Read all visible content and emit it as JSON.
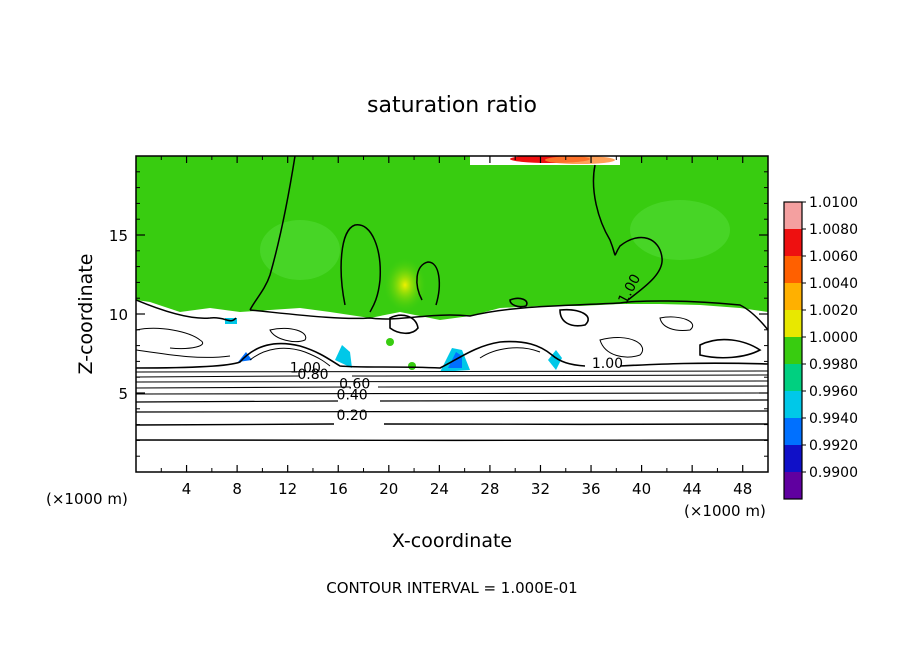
{
  "chart_data": {
    "type": "heatmap",
    "title": "saturation ratio",
    "xlabel": "X-coordinate",
    "ylabel": "Z-coordinate",
    "x_units_left": "(×1000 m)",
    "x_units_right": "(×1000 m)",
    "xlim": [
      0,
      50
    ],
    "ylim": [
      0,
      20
    ],
    "xticks": [
      4,
      8,
      12,
      16,
      20,
      24,
      28,
      32,
      36,
      40,
      44,
      48
    ],
    "yticks": [
      5,
      10,
      15
    ],
    "footer": "CONTOUR INTERVAL = 1.000E-01",
    "colorbar": {
      "ticks": [
        "1.0100",
        "1.0080",
        "1.0060",
        "1.0040",
        "1.0020",
        "1.0000",
        "0.9980",
        "0.9960",
        "0.9940",
        "0.9920",
        "0.9900"
      ],
      "colors": [
        "#f4a0a0",
        "#ee1010",
        "#ff6000",
        "#ffb000",
        "#e8e800",
        "#38cc10",
        "#00d080",
        "#00c8e8",
        "#0070ff",
        "#1010c8",
        "#6000a0"
      ]
    },
    "contour_labels": [
      {
        "text": "0.20",
        "x": 17.1,
        "z": 3.6
      },
      {
        "text": "0.40",
        "x": 17.1,
        "z": 4.9
      },
      {
        "text": "0.60",
        "x": 17.3,
        "z": 5.6
      },
      {
        "text": "0.80",
        "x": 14.0,
        "z": 6.2
      },
      {
        "text": "1.00",
        "x": 13.4,
        "z": 6.6
      },
      {
        "text": "1.00",
        "x": 37.3,
        "z": 6.9
      },
      {
        "text": "1.00",
        "x": 39.0,
        "z": 11.6
      }
    ]
  }
}
